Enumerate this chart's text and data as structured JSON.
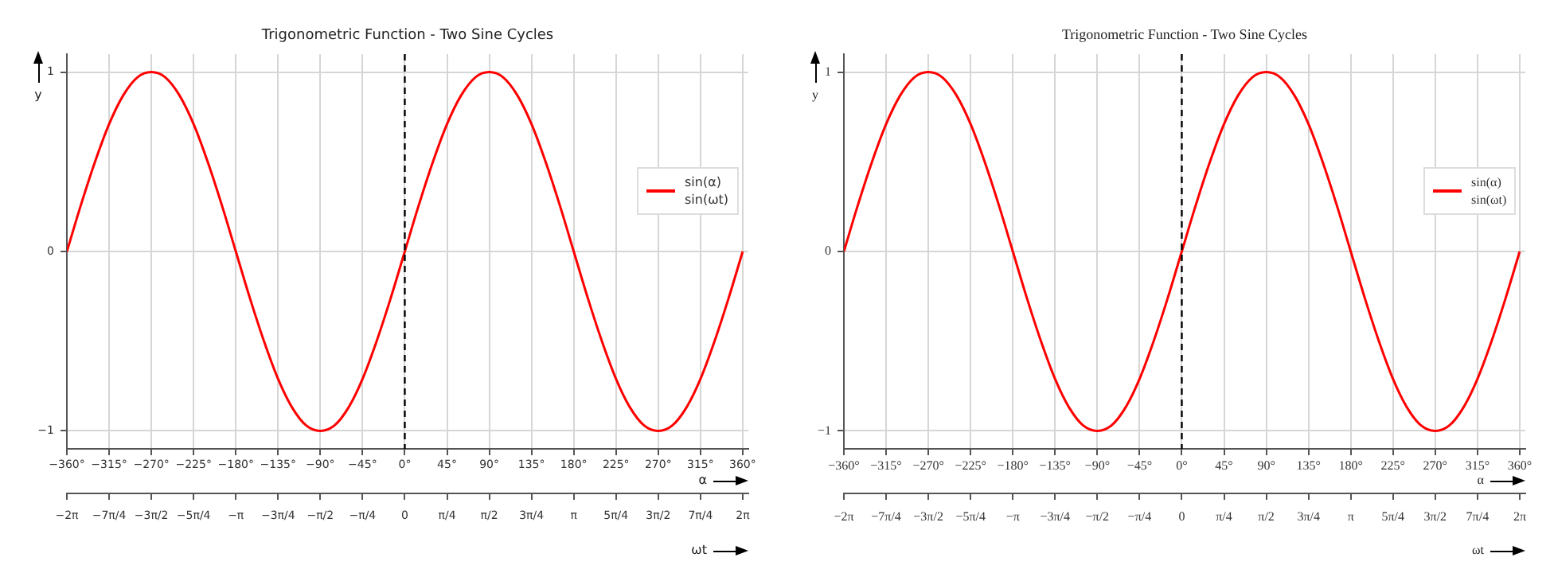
{
  "chart_data": [
    {
      "type": "line",
      "title": "Trigonometric Function - Two Sine Cycles",
      "xlabel": "α",
      "x2label": "ωt",
      "ylabel": "y",
      "x": [
        -360,
        -345,
        -330,
        -315,
        -300,
        -285,
        -270,
        -255,
        -240,
        -225,
        -210,
        -195,
        -180,
        -165,
        -150,
        -135,
        -120,
        -105,
        -90,
        -75,
        -60,
        -45,
        -30,
        -15,
        0,
        15,
        30,
        45,
        60,
        75,
        90,
        105,
        120,
        135,
        150,
        165,
        180,
        195,
        210,
        225,
        240,
        255,
        270,
        285,
        300,
        315,
        330,
        345,
        360
      ],
      "series": [
        {
          "name": "sin(α)\nsin(ωt)",
          "color": "#ff0000",
          "values": [
            0,
            0.26,
            0.5,
            0.71,
            0.87,
            0.97,
            1,
            0.97,
            0.87,
            0.71,
            0.5,
            0.26,
            0,
            -0.26,
            -0.5,
            -0.71,
            -0.87,
            -0.97,
            -1,
            -0.97,
            -0.87,
            -0.71,
            -0.5,
            -0.26,
            0,
            0.26,
            0.5,
            0.71,
            0.87,
            0.97,
            1,
            0.97,
            0.87,
            0.71,
            0.5,
            0.26,
            0,
            -0.26,
            -0.5,
            -0.71,
            -0.87,
            -0.97,
            -1,
            -0.97,
            -0.87,
            -0.71,
            -0.5,
            -0.26,
            0
          ]
        }
      ],
      "xlim": [
        -360,
        366
      ],
      "xticks": [
        {
          "value": -360,
          "label": "−360°"
        },
        {
          "value": -315,
          "label": "−315°"
        },
        {
          "value": -270,
          "label": "−270°"
        },
        {
          "value": -225,
          "label": "−225°"
        },
        {
          "value": -180,
          "label": "−180°"
        },
        {
          "value": -135,
          "label": "−135°"
        },
        {
          "value": -90,
          "label": "−90°"
        },
        {
          "value": -45,
          "label": "−45°"
        },
        {
          "value": 0,
          "label": "0°"
        },
        {
          "value": 45,
          "label": "45°"
        },
        {
          "value": 90,
          "label": "90°"
        },
        {
          "value": 135,
          "label": "135°"
        },
        {
          "value": 180,
          "label": "180°"
        },
        {
          "value": 225,
          "label": "225°"
        },
        {
          "value": 270,
          "label": "270°"
        },
        {
          "value": 315,
          "label": "315°"
        },
        {
          "value": 360,
          "label": "360°"
        }
      ],
      "x2lim": [
        -6.2832,
        6.388
      ],
      "x2ticks": [
        {
          "value": -6.2832,
          "label": "−2π"
        },
        {
          "value": -5.4978,
          "label": "−7π/4"
        },
        {
          "value": -4.7124,
          "label": "−3π/2"
        },
        {
          "value": -3.927,
          "label": "−5π/4"
        },
        {
          "value": -3.1416,
          "label": "−π"
        },
        {
          "value": -2.3562,
          "label": "−3π/4"
        },
        {
          "value": -1.5708,
          "label": "−π/2"
        },
        {
          "value": -0.7854,
          "label": "−π/4"
        },
        {
          "value": 0,
          "label": "0"
        },
        {
          "value": 0.7854,
          "label": "π/4"
        },
        {
          "value": 1.5708,
          "label": "π/2"
        },
        {
          "value": 2.3562,
          "label": "3π/4"
        },
        {
          "value": 3.1416,
          "label": "π"
        },
        {
          "value": 3.927,
          "label": "5π/4"
        },
        {
          "value": 4.7124,
          "label": "3π/2"
        },
        {
          "value": 5.4978,
          "label": "7π/4"
        },
        {
          "value": 6.2832,
          "label": "2π"
        }
      ],
      "ylim": [
        -1.1,
        1.1
      ],
      "yticks": [
        {
          "value": -1,
          "label": "−1"
        },
        {
          "value": 0,
          "label": "0"
        },
        {
          "value": 1,
          "label": "1"
        }
      ],
      "ref_lines": [
        {
          "axis": "x",
          "value": 0,
          "color": "#000000",
          "line_style": "dashed"
        }
      ],
      "grid": true,
      "legend": "right",
      "marker": "none"
    },
    {
      "type": "line",
      "title": "Trigonometric Function - Two Sine Cycles",
      "xlabel": "α",
      "x2label": "ωt",
      "ylabel": "y",
      "x": [
        -360,
        -345,
        -330,
        -315,
        -300,
        -285,
        -270,
        -255,
        -240,
        -225,
        -210,
        -195,
        -180,
        -165,
        -150,
        -135,
        -120,
        -105,
        -90,
        -75,
        -60,
        -45,
        -30,
        -15,
        0,
        15,
        30,
        45,
        60,
        75,
        90,
        105,
        120,
        135,
        150,
        165,
        180,
        195,
        210,
        225,
        240,
        255,
        270,
        285,
        300,
        315,
        330,
        345,
        360
      ],
      "series": [
        {
          "name": "sin(α)\nsin(ωt)",
          "color": "#ff0000",
          "values": [
            0,
            0.26,
            0.5,
            0.71,
            0.87,
            0.97,
            1,
            0.97,
            0.87,
            0.71,
            0.5,
            0.26,
            0,
            -0.26,
            -0.5,
            -0.71,
            -0.87,
            -0.97,
            -1,
            -0.97,
            -0.87,
            -0.71,
            -0.5,
            -0.26,
            0,
            0.26,
            0.5,
            0.71,
            0.87,
            0.97,
            1,
            0.97,
            0.87,
            0.71,
            0.5,
            0.26,
            0,
            -0.26,
            -0.5,
            -0.71,
            -0.87,
            -0.97,
            -1,
            -0.97,
            -0.87,
            -0.71,
            -0.5,
            -0.26,
            0
          ]
        }
      ],
      "xlim": [
        -360,
        366
      ],
      "xticks": [
        {
          "value": -360,
          "label": "−360°"
        },
        {
          "value": -315,
          "label": "−315°"
        },
        {
          "value": -270,
          "label": "−270°"
        },
        {
          "value": -225,
          "label": "−225°"
        },
        {
          "value": -180,
          "label": "−180°"
        },
        {
          "value": -135,
          "label": "−135°"
        },
        {
          "value": -90,
          "label": "−90°"
        },
        {
          "value": -45,
          "label": "−45°"
        },
        {
          "value": 0,
          "label": "0°"
        },
        {
          "value": 45,
          "label": "45°"
        },
        {
          "value": 90,
          "label": "90°"
        },
        {
          "value": 135,
          "label": "135°"
        },
        {
          "value": 180,
          "label": "180°"
        },
        {
          "value": 225,
          "label": "225°"
        },
        {
          "value": 270,
          "label": "270°"
        },
        {
          "value": 315,
          "label": "315°"
        },
        {
          "value": 360,
          "label": "360°"
        }
      ],
      "x2lim": [
        -6.2832,
        6.388
      ],
      "x2ticks": [
        {
          "value": -6.2832,
          "label": "−2π"
        },
        {
          "value": -5.4978,
          "label": "−7π/4"
        },
        {
          "value": -4.7124,
          "label": "−3π/2"
        },
        {
          "value": -3.927,
          "label": "−5π/4"
        },
        {
          "value": -3.1416,
          "label": "−π"
        },
        {
          "value": -2.3562,
          "label": "−3π/4"
        },
        {
          "value": -1.5708,
          "label": "−π/2"
        },
        {
          "value": -0.7854,
          "label": "−π/4"
        },
        {
          "value": 0,
          "label": "0"
        },
        {
          "value": 0.7854,
          "label": "π/4"
        },
        {
          "value": 1.5708,
          "label": "π/2"
        },
        {
          "value": 2.3562,
          "label": "3π/4"
        },
        {
          "value": 3.1416,
          "label": "π"
        },
        {
          "value": 3.927,
          "label": "5π/4"
        },
        {
          "value": 4.7124,
          "label": "3π/2"
        },
        {
          "value": 5.4978,
          "label": "7π/4"
        },
        {
          "value": 6.2832,
          "label": "2π"
        }
      ],
      "ylim": [
        -1.1,
        1.1
      ],
      "yticks": [
        {
          "value": -1,
          "label": "−1"
        },
        {
          "value": 0,
          "label": "0"
        },
        {
          "value": 1,
          "label": "1"
        }
      ],
      "ref_lines": [
        {
          "axis": "x",
          "value": 0,
          "color": "#000000",
          "line_style": "dashed"
        }
      ],
      "grid": true,
      "legend": "right",
      "marker": "none"
    }
  ]
}
